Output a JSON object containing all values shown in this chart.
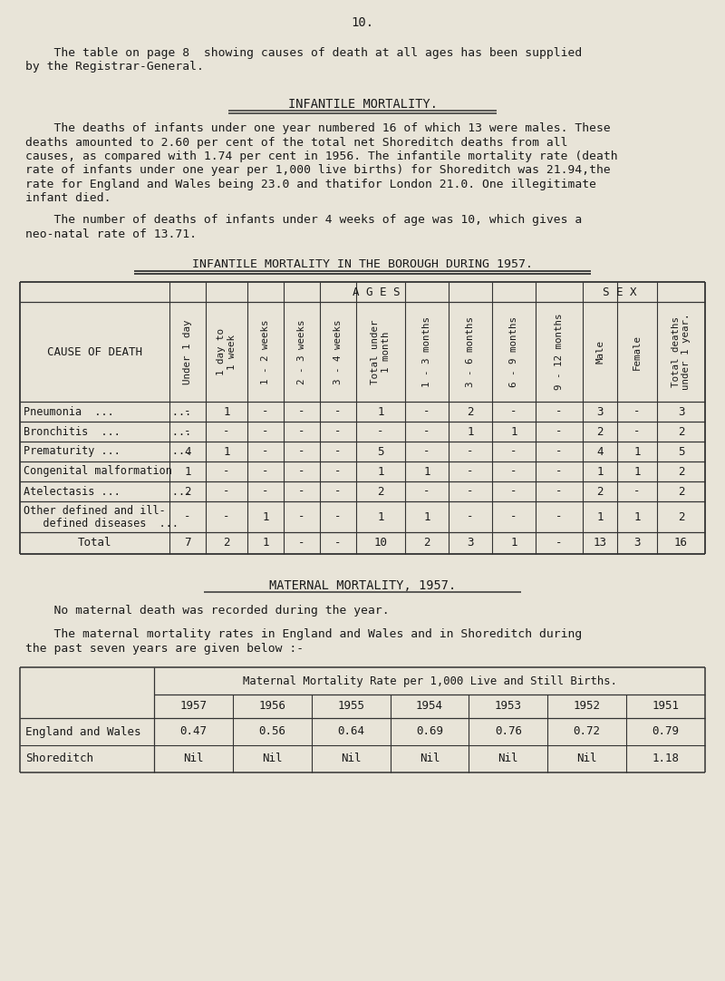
{
  "bg_color": "#e8e4d8",
  "page_number": "10.",
  "intro_line1": "    The table on page 8  showing causes of death at all ages has been supplied",
  "intro_line2": "by the Registrar-General.",
  "section1_title": "INFANTILE MORTALITY.",
  "section1_para1_lines": [
    "    The deaths of infants under one year numbered 16 of which 13 were males. These",
    "deaths amounted to 2.60 per cent of the total net Shoreditch deaths from all",
    "causes, as compared with 1.74 per cent in 1956. The infantile mortality rate (death",
    "rate of infants under one year per 1,000 live births) for Shoreditch was 21.94,the",
    "rate for England and Wales being 23.0 and thatifor London 21.0. One illegitimate",
    "infant died."
  ],
  "section1_para2_lines": [
    "    The number of deaths of infants under 4 weeks of age was 10, which gives a",
    "neo-natal rate of 13.71."
  ],
  "table1_title": "INFANTILE MORTALITY IN THE BOROUGH DURING 1957.",
  "table1_ages_label": "A G E S",
  "table1_sex_label": "S E X",
  "table1_col_headers": [
    "CAUSE OF DEATH",
    "Under 1 day",
    "1 day to\n1 week",
    "1 - 2 weeks",
    "2 - 3 weeks",
    "3 - 4 weeks",
    "Total under\n1 month",
    "1 - 3 months",
    "3 - 6 months",
    "6 - 9 months",
    "9 - 12 months",
    "Male",
    "Female",
    "Total deaths\nunder 1 year."
  ],
  "table1_rows": [
    [
      "Pneumonia  ...         ...",
      "-",
      "1",
      "-",
      "-",
      "-",
      "1",
      "-",
      "2",
      "-",
      "-",
      "3",
      "-",
      "3"
    ],
    [
      "Bronchitis  ...        ...",
      "-",
      "-",
      "-",
      "-",
      "-",
      "-",
      "-",
      "1",
      "1",
      "-",
      "2",
      "-",
      "2"
    ],
    [
      "Prematurity ...        ...",
      "4",
      "1",
      "-",
      "-",
      "-",
      "5",
      "-",
      "-",
      "-",
      "-",
      "4",
      "1",
      "5"
    ],
    [
      "Congenital malformation",
      "1",
      "-",
      "-",
      "-",
      "-",
      "1",
      "1",
      "-",
      "-",
      "-",
      "1",
      "1",
      "2"
    ],
    [
      "Atelectasis ...        ...",
      "2",
      "-",
      "-",
      "-",
      "-",
      "2",
      "-",
      "-",
      "-",
      "-",
      "2",
      "-",
      "2"
    ],
    [
      "Other defined and ill-",
      "-",
      "-",
      "1",
      "-",
      "-",
      "1",
      "1",
      "-",
      "-",
      "-",
      "1",
      "1",
      "2"
    ],
    [
      "Total",
      "7",
      "2",
      "1",
      "-",
      "-",
      "10",
      "2",
      "3",
      "1",
      "-",
      "13",
      "3",
      "16"
    ]
  ],
  "table1_row5_line2": "   defined diseases  ...",
  "section2_title": "MATERNAL MORTALITY, 1957.",
  "section2_para1": "    No maternal death was recorded during the year.",
  "section2_para2_lines": [
    "    The maternal mortality rates in England and Wales and in Shoreditch during",
    "the past seven years are given below :-"
  ],
  "table2_title": "Maternal Mortality Rate per 1,000 Live and Still Births.",
  "table2_years": [
    "1957",
    "1956",
    "1955",
    "1954",
    "1953",
    "1952",
    "1951"
  ],
  "table2_rows": [
    [
      "England and Wales",
      "0.47",
      "0.56",
      "0.64",
      "0.69",
      "0.76",
      "0.72",
      "0.79"
    ],
    [
      "Shoreditch",
      "Nil",
      "Nil",
      "Nil",
      "Nil",
      "Nil",
      "Nil",
      "1.18"
    ]
  ]
}
